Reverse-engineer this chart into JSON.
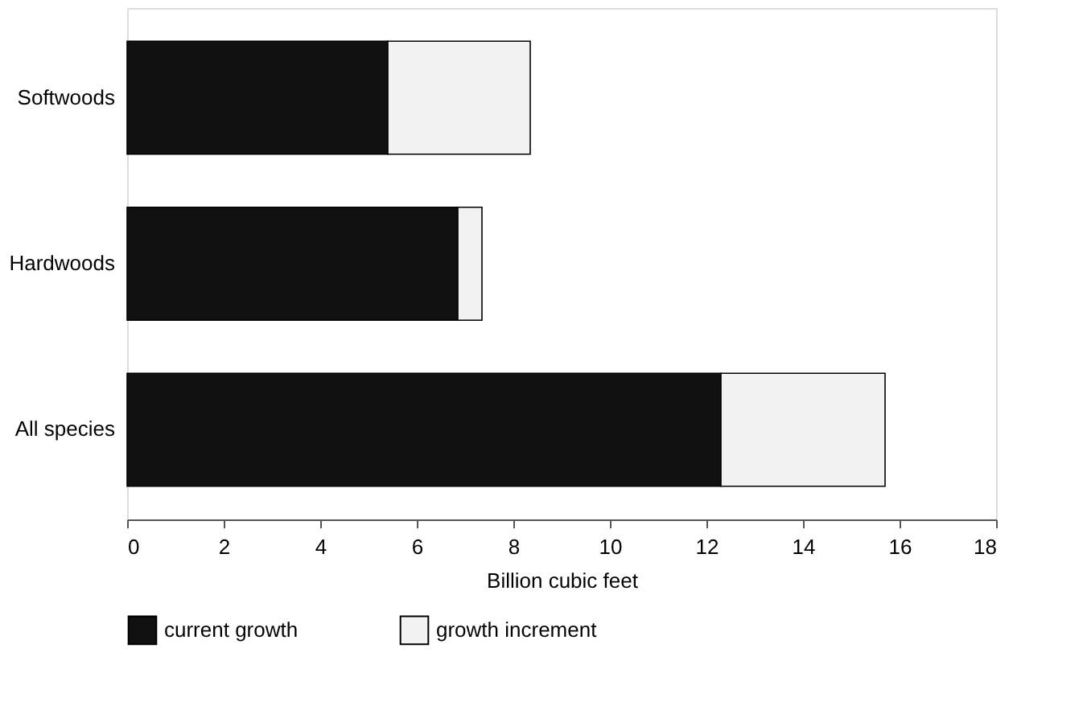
{
  "chart_data": {
    "type": "bar",
    "orientation": "horizontal",
    "stacked": true,
    "xlabel": "Billion cubic feet",
    "categories": [
      "Softwoods",
      "Hardwoods",
      "All species"
    ],
    "series": [
      {
        "name": "current growth",
        "color": "#111111",
        "values": [
          5.4,
          6.85,
          12.3
        ]
      },
      {
        "name": "growth increment",
        "color": "#f2f2f2",
        "values": [
          2.95,
          0.5,
          3.4
        ]
      }
    ],
    "xlim": [
      0,
      18
    ],
    "xticks": [
      0,
      2,
      4,
      6,
      8,
      10,
      12,
      14,
      16,
      18
    ],
    "grid": false,
    "legend": "bottom"
  }
}
